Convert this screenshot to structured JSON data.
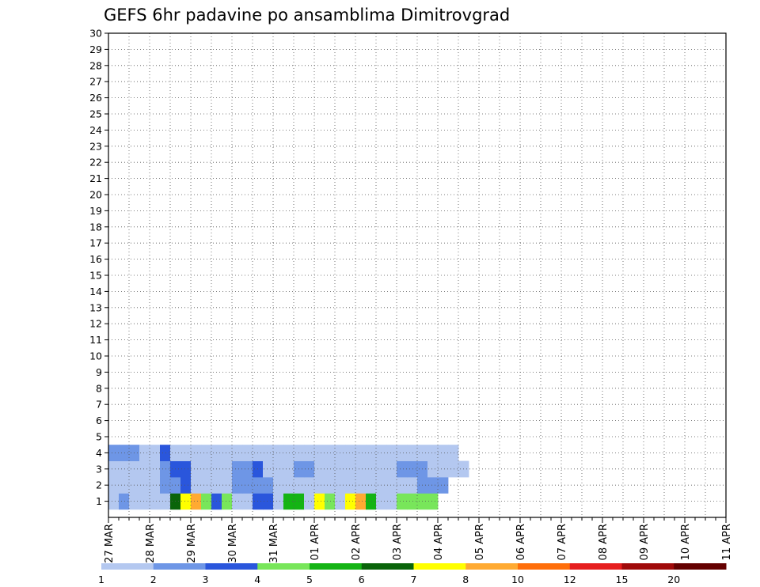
{
  "chart_data": {
    "type": "heatmap",
    "title": "GEFS 6hr padavine po ansamblima Dimitrovgrad",
    "xlabel": "",
    "ylabel": "",
    "x_range_steps": [
      0,
      60
    ],
    "members": [
      1,
      2,
      3,
      4,
      5,
      6,
      7,
      8,
      9,
      10,
      11,
      12,
      13,
      14,
      15,
      16,
      17,
      18,
      19,
      20,
      21,
      22,
      23,
      24,
      25,
      26,
      27,
      28,
      29,
      30
    ],
    "date_ticks": [
      {
        "step": 0,
        "label": "27 MAR"
      },
      {
        "step": 4,
        "label": "28 MAR"
      },
      {
        "step": 8,
        "label": "29 MAR"
      },
      {
        "step": 12,
        "label": "30 MAR"
      },
      {
        "step": 16,
        "label": "31 MAR"
      },
      {
        "step": 20,
        "label": "01 APR"
      },
      {
        "step": 24,
        "label": "02 APR"
      },
      {
        "step": 28,
        "label": "03 APR"
      },
      {
        "step": 32,
        "label": "04 APR"
      },
      {
        "step": 36,
        "label": "05 APR"
      },
      {
        "step": 40,
        "label": "06 APR"
      },
      {
        "step": 44,
        "label": "07 APR"
      },
      {
        "step": 48,
        "label": "08 APR"
      },
      {
        "step": 52,
        "label": "09 APR"
      },
      {
        "step": 56,
        "label": "10 APR"
      },
      {
        "step": 60,
        "label": "11 APR"
      }
    ],
    "legend": {
      "labels": [
        "1",
        "2",
        "3",
        "4",
        "5",
        "6",
        "7",
        "8",
        "10",
        "12",
        "15",
        "20"
      ],
      "colors": [
        "#b4c8f0",
        "#6e96e6",
        "#2a56dc",
        "#78e65a",
        "#14b414",
        "#0a640a",
        "#ffff00",
        "#ffaa32",
        "#ff6e0a",
        "#e61e1e",
        "#a00a0a",
        "#640000"
      ]
    },
    "grid": true,
    "cells": [
      [
        1,
        "1.6,2.5,1,1,1,1,6,7,8,4.5,3.5,4,1,1,3.5,3.5,1,5.5,5.5,1.5,7,4.5,1,7,8,5.5,1,1,4.5,4.5,4.5,4.5"
      ],
      [
        2,
        "1,1.6,1,1,1,2,2,3,1.5,1,1,1,2,2,2.5,2,1,1,1,1,1,1,1,1,1,1,1,1,1,1,2,2,2"
      ],
      [
        3,
        "1,1,1,1,1,2,3,3,1,1,1,1,2,2,3,1,1,1,2,2,1,1,1,1,1,1,1,1,2,2,2,1,1,1,1"
      ],
      [
        4,
        "2.5,2.5,2.5,1.6,1,3,1,1,1,1,1,1,1,1,1,1,1,1,1,1,1,1,1,1,1,1,1,1,1,1,1,1,1,1"
      ],
      [
        5,
        "0,0,0,0,0,0,0,0,0,0,0,0,0,0,0,0,0,0,0,0,0,0,0,0,0,0,0,0,0,0,0,0,0,0,0,0,0,0,0,0,0,0,0,0,0,0,0,0,0,0,0,0,0,0,0,0,0,0,0,0"
      ]
    ]
  }
}
